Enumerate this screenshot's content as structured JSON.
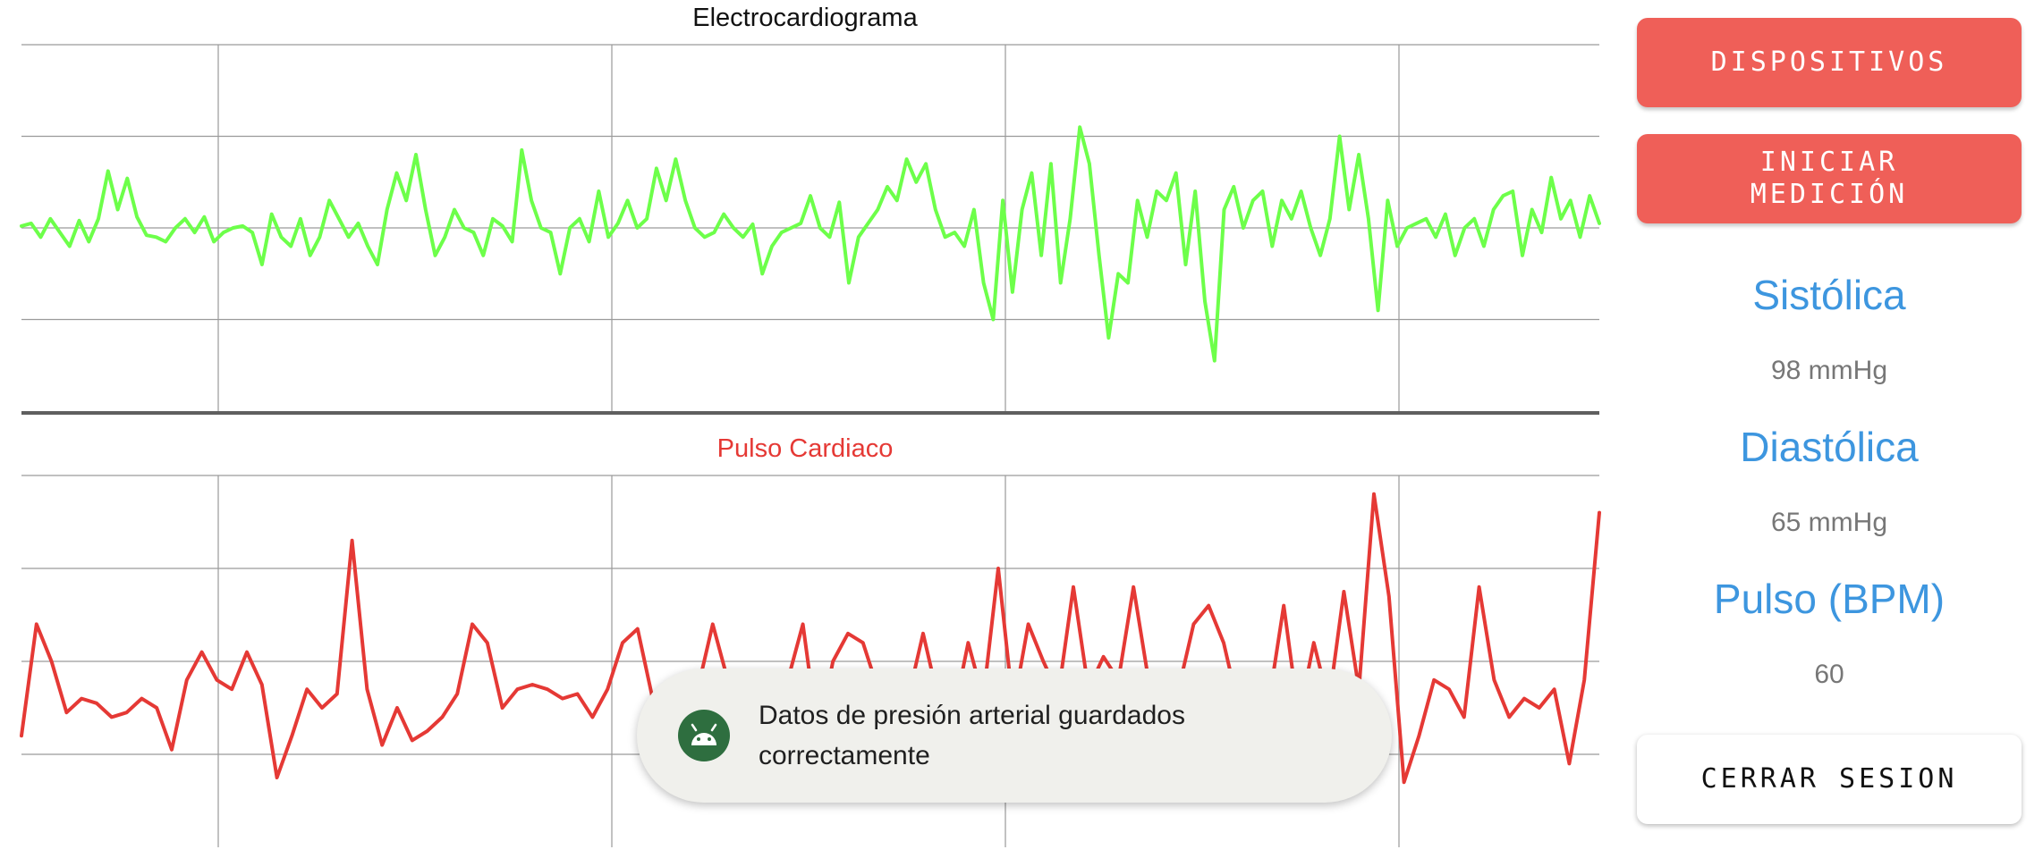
{
  "charts": {
    "ecg_title": "Electrocardiograma",
    "pulse_title": "Pulso Cardiaco"
  },
  "chart_data": [
    {
      "type": "line",
      "title": "Electrocardiograma",
      "color": "#6dff4a",
      "ylim": [
        -2,
        2
      ],
      "grid": true,
      "series": [
        {
          "values": [
            0.02,
            0.05,
            -0.1,
            0.1,
            -0.05,
            -0.2,
            0.08,
            -0.15,
            0.1,
            0.62,
            0.2,
            0.54,
            0.12,
            -0.08,
            -0.1,
            -0.15,
            0.0,
            0.1,
            -0.05,
            0.12,
            -0.15,
            -0.05,
            0.0,
            0.02,
            -0.05,
            -0.4,
            0.15,
            -0.1,
            -0.2,
            0.1,
            -0.3,
            -0.1,
            0.3,
            0.1,
            -0.1,
            0.05,
            -0.2,
            -0.4,
            0.2,
            0.6,
            0.3,
            0.8,
            0.2,
            -0.3,
            -0.1,
            0.2,
            0.0,
            -0.05,
            -0.3,
            0.1,
            0.02,
            -0.15,
            0.85,
            0.3,
            0.0,
            -0.05,
            -0.5,
            0.0,
            0.1,
            -0.15,
            0.4,
            -0.1,
            0.05,
            0.3,
            0.0,
            0.1,
            0.65,
            0.3,
            0.75,
            0.3,
            0.0,
            -0.1,
            -0.05,
            0.15,
            0.0,
            -0.1,
            0.04,
            -0.5,
            -0.2,
            -0.05,
            0.0,
            0.05,
            0.35,
            0.0,
            -0.1,
            0.28,
            -0.6,
            -0.1,
            0.05,
            0.2,
            0.45,
            0.3,
            0.75,
            0.5,
            0.7,
            0.2,
            -0.1,
            -0.05,
            -0.2,
            0.2,
            -0.6,
            -1.0,
            0.3,
            -0.7,
            0.2,
            0.6,
            -0.3,
            0.7,
            -0.6,
            0.1,
            1.1,
            0.7,
            -0.3,
            -1.2,
            -0.5,
            -0.6,
            0.3,
            -0.1,
            0.4,
            0.3,
            0.6,
            -0.4,
            0.4,
            -0.8,
            -1.45,
            0.2,
            0.45,
            0.0,
            0.3,
            0.4,
            -0.2,
            0.3,
            0.1,
            0.4,
            0.0,
            -0.3,
            0.1,
            1.0,
            0.2,
            0.8,
            0.1,
            -0.9,
            0.3,
            -0.2,
            0.0,
            0.05,
            0.1,
            -0.1,
            0.15,
            -0.3,
            0.0,
            0.1,
            -0.2,
            0.2,
            0.35,
            0.4,
            -0.3,
            0.2,
            -0.05,
            0.55,
            0.1,
            0.3,
            -0.1,
            0.35,
            0.05
          ],
          "color": "#6dff4a"
        }
      ]
    },
    {
      "type": "line",
      "title": "Pulso Cardiaco",
      "color": "#e53935",
      "ylim": [
        -2,
        2
      ],
      "grid": true,
      "series": [
        {
          "values": [
            -0.8,
            0.4,
            0.0,
            -0.55,
            -0.4,
            -0.45,
            -0.6,
            -0.55,
            -0.4,
            -0.5,
            -0.95,
            -0.2,
            0.1,
            -0.2,
            -0.3,
            0.1,
            -0.25,
            -1.25,
            -0.8,
            -0.3,
            -0.5,
            -0.35,
            1.3,
            -0.3,
            -0.9,
            -0.5,
            -0.85,
            -0.75,
            -0.6,
            -0.35,
            0.4,
            0.2,
            -0.5,
            -0.3,
            -0.25,
            -0.3,
            -0.4,
            -0.35,
            -0.6,
            -0.3,
            0.2,
            0.35,
            -0.4,
            -0.45,
            -0.3,
            -0.3,
            0.4,
            -0.2,
            -0.5,
            -0.1,
            -0.2,
            -0.2,
            0.4,
            -0.8,
            0.0,
            0.3,
            0.2,
            -0.3,
            -0.2,
            -0.4,
            0.3,
            -0.4,
            -0.6,
            0.2,
            -0.4,
            1.0,
            -0.5,
            0.4,
            0.0,
            -0.35,
            0.8,
            -0.3,
            0.05,
            -0.2,
            0.8,
            -0.2,
            -0.5,
            -0.3,
            0.4,
            0.6,
            0.2,
            -0.5,
            -0.9,
            -0.45,
            0.6,
            -0.6,
            0.2,
            -0.45,
            0.75,
            -0.3,
            1.8,
            0.7,
            -1.3,
            -0.8,
            -0.2,
            -0.3,
            -0.6,
            0.8,
            -0.2,
            -0.6,
            -0.4,
            -0.5,
            -0.3,
            -1.1,
            -0.2,
            1.6
          ],
          "color": "#e53935"
        }
      ]
    }
  ],
  "sidebar": {
    "devices_label": "DISPOSITIVOS",
    "start_label": "INICIAR MEDICIÓN",
    "systolic_label": "Sistólica",
    "systolic_value": "98 mmHg",
    "diastolic_label": "Diastólica",
    "diastolic_value": "65 mmHg",
    "pulse_label": "Pulso (BPM)",
    "pulse_value": "60",
    "logout_label": "CERRAR SESION"
  },
  "toast": {
    "message": "Datos de presión arterial guardados correctamente",
    "icon": "android-icon"
  }
}
